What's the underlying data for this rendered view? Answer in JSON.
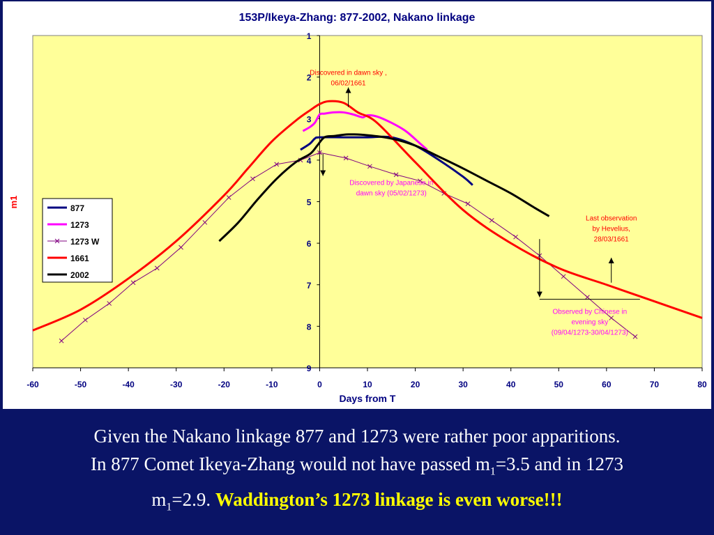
{
  "chart_data": {
    "type": "line",
    "title": "153P/Ikeya-Zhang: 877-2002, Nakano linkage",
    "xlabel": "Days from T",
    "ylabel": "m1",
    "xlim": [
      -60,
      80
    ],
    "ylim": [
      1,
      9
    ],
    "y_inverted": true,
    "x_ticks": [
      -60,
      -50,
      -40,
      -30,
      -20,
      -10,
      0,
      10,
      20,
      30,
      40,
      50,
      60,
      70,
      80
    ],
    "y_ticks": [
      1,
      2,
      3,
      4,
      5,
      6,
      7,
      8,
      9
    ],
    "grid": false,
    "plot_background": "#ffff99",
    "legend_placement": "left-middle",
    "series": [
      {
        "name": "877",
        "color": "#000080",
        "marker": "none",
        "x": [
          -4,
          -2,
          -1,
          0,
          5,
          10,
          15,
          20,
          25,
          30,
          32
        ],
        "y": [
          3.75,
          3.6,
          3.48,
          3.45,
          3.45,
          3.45,
          3.45,
          3.65,
          4.0,
          4.4,
          4.6
        ]
      },
      {
        "name": "1273",
        "color": "#ff00ff",
        "marker": "none",
        "x": [
          -3.5,
          -2,
          -1,
          0,
          1,
          3,
          5,
          7,
          9,
          10,
          12,
          15,
          18,
          21,
          22.5
        ],
        "y": [
          3.3,
          3.2,
          3.1,
          2.9,
          2.88,
          2.85,
          2.85,
          2.9,
          2.97,
          2.92,
          2.95,
          3.1,
          3.3,
          3.6,
          3.75
        ]
      },
      {
        "name": "1273 W",
        "color": "#800080",
        "marker": "x",
        "x": [
          -54,
          -49,
          -44,
          -39,
          -34,
          -29,
          -24,
          -19,
          -14,
          -9,
          -4,
          0,
          5.5,
          10.5,
          16,
          21,
          26,
          31,
          36,
          41,
          46,
          51,
          56,
          61,
          66
        ],
        "y": [
          8.35,
          7.85,
          7.45,
          6.95,
          6.6,
          6.1,
          5.5,
          4.9,
          4.45,
          4.1,
          4.0,
          3.82,
          3.95,
          4.15,
          4.35,
          4.5,
          4.8,
          5.05,
          5.45,
          5.85,
          6.3,
          6.8,
          7.3,
          7.8,
          8.25
        ]
      },
      {
        "name": "1661",
        "color": "#ff0000",
        "marker": "none",
        "x": [
          -60,
          -50,
          -40,
          -30,
          -20,
          -15,
          -10,
          -5,
          -2,
          0,
          2,
          5,
          8,
          12,
          20,
          30,
          40,
          50,
          60,
          70,
          80
        ],
        "y": [
          8.1,
          7.6,
          6.85,
          5.95,
          4.85,
          4.2,
          3.55,
          3.05,
          2.8,
          2.65,
          2.58,
          2.62,
          2.85,
          3.1,
          4.05,
          5.2,
          6.0,
          6.6,
          7.0,
          7.4,
          7.8
        ]
      },
      {
        "name": "2002",
        "color": "#000000",
        "marker": "none",
        "x": [
          -21,
          -17,
          -13,
          -9,
          -5,
          -2,
          -0.5,
          1,
          3,
          6,
          10,
          15,
          20,
          25,
          30,
          35,
          40,
          45,
          48
        ],
        "y": [
          5.95,
          5.5,
          4.95,
          4.45,
          4.05,
          3.85,
          3.65,
          3.45,
          3.42,
          3.38,
          3.4,
          3.48,
          3.65,
          3.92,
          4.2,
          4.5,
          4.8,
          5.15,
          5.35
        ]
      }
    ],
    "annotations": [
      {
        "text": [
          "Discovered in dawn sky ,",
          "06/02/1661"
        ],
        "color": "#ff0000",
        "anchor": {
          "x": 6,
          "y": 1.95
        },
        "arrow": {
          "x": 6,
          "from": 2.72,
          "to": 2.25
        }
      },
      {
        "text": [
          "Discovered by Japanese in",
          "dawn sky (05/02/1273)"
        ],
        "color": "#ff00ff",
        "anchor": {
          "x": 15,
          "y": 4.6
        },
        "arrow": {
          "x": 0.7,
          "from": 3.85,
          "to": 4.38
        }
      },
      {
        "text": [
          "Last observation",
          "by Hevelius,",
          "28/03/1661"
        ],
        "color": "#ff0000",
        "anchor": {
          "x": 61,
          "y": 5.45
        },
        "arrow": {
          "x": 61,
          "from": 6.95,
          "to": 6.35
        }
      },
      {
        "text": [
          "Observed by Chinese in",
          "evening sky",
          "(09/04/1273-30/04/1273)"
        ],
        "color": "#ff00ff",
        "anchor": {
          "x": 56.5,
          "y": 7.7
        },
        "arrow": {
          "x": 46,
          "from": 5.9,
          "to": 7.3
        },
        "bracket": {
          "x1": 46,
          "x2": 67,
          "y": 7.35
        }
      }
    ]
  },
  "caption": {
    "line1": "Given the Nakano linkage 877 and 1273 were rather poor apparitions.",
    "line2_pre": "In 877 Comet Ikeya-Zhang would not have passed m",
    "line2_sub": "1",
    "line2_post": "=3.5 and in 1273",
    "line3_pre": "m",
    "line3_sub": "1",
    "line3_post": "=2.9. ",
    "highlight": "Waddington’s 1273 linkage is even worse!!!",
    "text_color": "#ffffff",
    "highlight_color": "#ffff00"
  },
  "background_color": "#0a1466"
}
